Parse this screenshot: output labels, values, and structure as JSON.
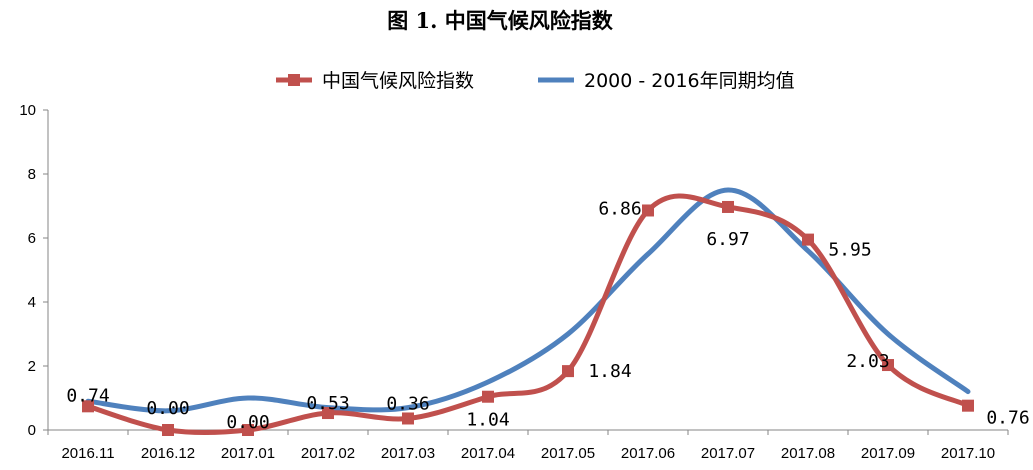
{
  "chart_data": {
    "type": "line",
    "title": "图 1.  中国气候风险指数",
    "xlabel": "",
    "ylabel": "",
    "ylim": [
      0,
      10
    ],
    "yticks": [
      0,
      2,
      4,
      6,
      8,
      10
    ],
    "grid": false,
    "legend": "top",
    "categories": [
      "2016.11",
      "2016.12",
      "2017.01",
      "2017.02",
      "2017.03",
      "2017.04",
      "2017.05",
      "2017.06",
      "2017.07",
      "2017.08",
      "2017.09",
      "2017.10"
    ],
    "series": [
      {
        "name": "中国气候风险指数",
        "color": "#C0504D",
        "marker": "square",
        "values": [
          0.74,
          0.0,
          0.0,
          0.53,
          0.36,
          1.04,
          1.84,
          6.86,
          6.97,
          5.95,
          2.03,
          0.76
        ],
        "labels": [
          "0.74",
          "0.00",
          "0.00",
          "0.53",
          "0.36",
          "1.04",
          "1.84",
          "6.86",
          "6.97",
          "5.95",
          "2.03",
          "0.76"
        ]
      },
      {
        "name": "2000 - 2016年同期均值",
        "color": "#4F81BD",
        "marker": "none",
        "values": [
          0.9,
          0.6,
          1.0,
          0.7,
          0.7,
          1.5,
          3.0,
          5.5,
          7.5,
          5.6,
          3.0,
          1.2
        ]
      }
    ]
  }
}
